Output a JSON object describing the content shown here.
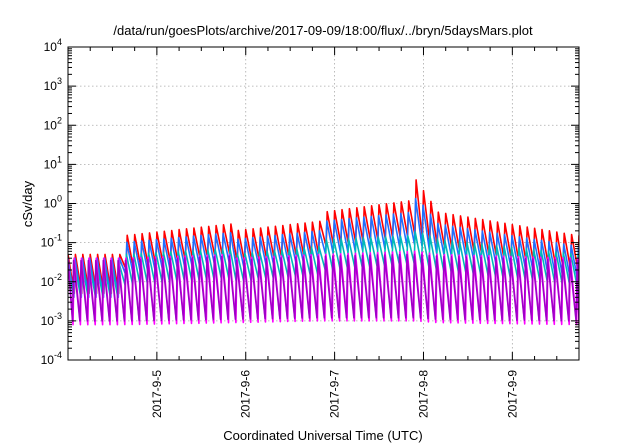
{
  "chart_data": {
    "type": "line",
    "title": "/data/run/goesPlots/archive/2017-09-09/18:00/flux/../bryn/5daysMars.plot",
    "xlabel": "Coordinated Universal Time (UTC)",
    "ylabel": "cSv/day",
    "y_scale": "log",
    "ylim": [
      0.0001,
      10000
    ],
    "xlim": [
      "2017-09-04 00:00",
      "2017-09-09 18:00"
    ],
    "grid": true,
    "legend": "none",
    "x_ticks": [
      "2017-9-5",
      "2017-9-6",
      "2017-9-7",
      "2017-9-8",
      "2017-9-9"
    ],
    "y_ticks": [
      {
        "base": "10",
        "exp": "-4"
      },
      {
        "base": "10",
        "exp": "-3"
      },
      {
        "base": "10",
        "exp": "-2"
      },
      {
        "base": "10",
        "exp": "-1"
      },
      {
        "base": "10",
        "exp": "0"
      },
      {
        "base": "10",
        "exp": "1"
      },
      {
        "base": "10",
        "exp": "2"
      },
      {
        "base": "10",
        "exp": "3"
      },
      {
        "base": "10",
        "exp": "4"
      }
    ],
    "sawtooth_period_hours": 2.0,
    "series": [
      {
        "color": "#ff0000",
        "envelope_hours": [
          0,
          14,
          15,
          44,
          45,
          68,
          69,
          93,
          94,
          100,
          138
        ],
        "peaks": [
          0.05,
          0.05,
          0.15,
          0.3,
          0.2,
          0.35,
          0.6,
          1.2,
          4.0,
          0.6,
          0.15
        ],
        "troughs": [
          0.005,
          0.005,
          0.02,
          0.05,
          0.03,
          0.05,
          0.08,
          0.15,
          0.15,
          0.08,
          0.02
        ]
      },
      {
        "color": "#1f6fff",
        "envelope_hours": [
          0,
          14,
          15,
          44,
          45,
          68,
          69,
          93,
          94,
          100,
          138
        ],
        "peaks": [
          0.04,
          0.04,
          0.1,
          0.18,
          0.12,
          0.2,
          0.35,
          0.6,
          1.5,
          0.3,
          0.08
        ],
        "troughs": [
          0.004,
          0.004,
          0.015,
          0.03,
          0.02,
          0.035,
          0.05,
          0.08,
          0.1,
          0.05,
          0.012
        ]
      },
      {
        "color": "#00b9b9",
        "envelope_hours": [
          0,
          14,
          15,
          44,
          45,
          68,
          69,
          93,
          94,
          100,
          138
        ],
        "peaks": [
          0.03,
          0.03,
          0.05,
          0.07,
          0.05,
          0.08,
          0.12,
          0.15,
          0.2,
          0.12,
          0.05
        ],
        "troughs": [
          0.004,
          0.004,
          0.008,
          0.012,
          0.01,
          0.015,
          0.02,
          0.03,
          0.03,
          0.02,
          0.008
        ]
      },
      {
        "color": "#ff00ff",
        "envelope_hours": [
          0,
          14,
          15,
          44,
          45,
          68,
          69,
          93,
          94,
          100,
          138
        ],
        "peaks": [
          0.04,
          0.04,
          0.04,
          0.05,
          0.04,
          0.05,
          0.05,
          0.06,
          0.06,
          0.05,
          0.04
        ],
        "troughs": [
          0.0008,
          0.0008,
          0.0008,
          0.0009,
          0.0009,
          0.001,
          0.001,
          0.001,
          0.001,
          0.0009,
          0.0008
        ]
      },
      {
        "color": "#a000c8",
        "envelope_hours": [
          0,
          14,
          15,
          44,
          45,
          68,
          69,
          93,
          94,
          100,
          138
        ],
        "peaks": [
          0.035,
          0.035,
          0.035,
          0.045,
          0.035,
          0.045,
          0.045,
          0.05,
          0.05,
          0.045,
          0.035
        ],
        "troughs": [
          0.001,
          0.001,
          0.001,
          0.0011,
          0.0011,
          0.0012,
          0.0012,
          0.0012,
          0.0012,
          0.0011,
          0.001
        ]
      }
    ]
  }
}
